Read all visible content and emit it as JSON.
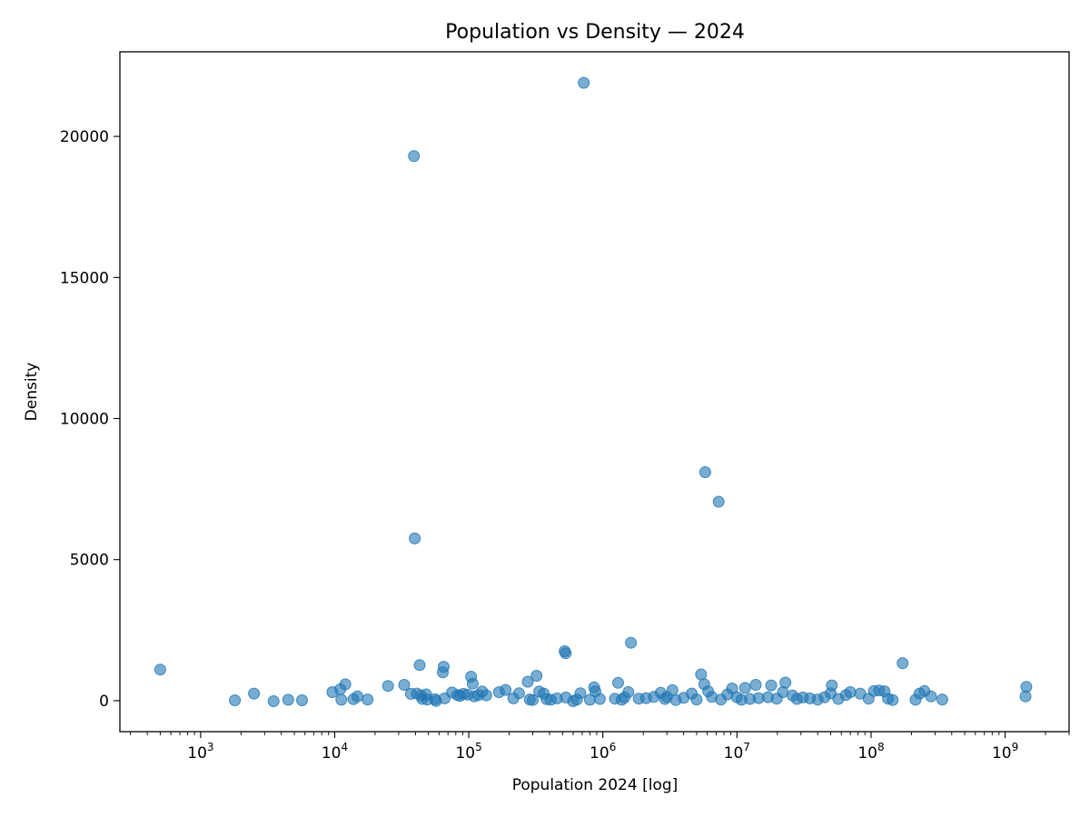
{
  "chart_data": {
    "type": "scatter",
    "title": "Population vs Density — 2024",
    "xlabel": "Population 2024 [log]",
    "ylabel": "Density",
    "xscale": "log",
    "xlim": [
      250,
      3000000000
    ],
    "ylim": [
      -1100,
      23000
    ],
    "grid": false,
    "legend": "none",
    "marker_color": "#1f77b4",
    "marker_alpha": 0.6,
    "x_ticks": [
      {
        "base": "10",
        "exp": "3",
        "value": 1000
      },
      {
        "base": "10",
        "exp": "4",
        "value": 10000
      },
      {
        "base": "10",
        "exp": "5",
        "value": 100000
      },
      {
        "base": "10",
        "exp": "6",
        "value": 1000000
      },
      {
        "base": "10",
        "exp": "7",
        "value": 10000000
      },
      {
        "base": "10",
        "exp": "8",
        "value": 100000000
      },
      {
        "base": "10",
        "exp": "9",
        "value": 1000000000
      }
    ],
    "y_ticks": [
      "0",
      "5000",
      "10000",
      "15000",
      "20000"
    ],
    "points": [
      {
        "x": 500,
        "y": 1100
      },
      {
        "x": 1800,
        "y": 10
      },
      {
        "x": 2500,
        "y": 250
      },
      {
        "x": 3500,
        "y": -20
      },
      {
        "x": 4500,
        "y": 30
      },
      {
        "x": 5700,
        "y": 10
      },
      {
        "x": 9600,
        "y": 300
      },
      {
        "x": 11000,
        "y": 400
      },
      {
        "x": 11200,
        "y": 30
      },
      {
        "x": 12000,
        "y": 580
      },
      {
        "x": 13800,
        "y": 50
      },
      {
        "x": 14800,
        "y": 150
      },
      {
        "x": 17600,
        "y": 40
      },
      {
        "x": 25000,
        "y": 520
      },
      {
        "x": 33000,
        "y": 560
      },
      {
        "x": 37000,
        "y": 240
      },
      {
        "x": 39000,
        "y": 19300
      },
      {
        "x": 39500,
        "y": 5750
      },
      {
        "x": 41000,
        "y": 250
      },
      {
        "x": 43000,
        "y": 1260
      },
      {
        "x": 44000,
        "y": 180
      },
      {
        "x": 45000,
        "y": 60
      },
      {
        "x": 48000,
        "y": 220
      },
      {
        "x": 49000,
        "y": 40
      },
      {
        "x": 56000,
        "y": 50
      },
      {
        "x": 57000,
        "y": -10
      },
      {
        "x": 64000,
        "y": 1000
      },
      {
        "x": 65000,
        "y": 1200
      },
      {
        "x": 66000,
        "y": 80
      },
      {
        "x": 75000,
        "y": 290
      },
      {
        "x": 82000,
        "y": 200
      },
      {
        "x": 86000,
        "y": 170
      },
      {
        "x": 91000,
        "y": 240
      },
      {
        "x": 98000,
        "y": 210
      },
      {
        "x": 104000,
        "y": 850
      },
      {
        "x": 107000,
        "y": 600
      },
      {
        "x": 110000,
        "y": 150
      },
      {
        "x": 118000,
        "y": 200
      },
      {
        "x": 126000,
        "y": 320
      },
      {
        "x": 135000,
        "y": 190
      },
      {
        "x": 168000,
        "y": 300
      },
      {
        "x": 188000,
        "y": 380
      },
      {
        "x": 215000,
        "y": 80
      },
      {
        "x": 237000,
        "y": 260
      },
      {
        "x": 275000,
        "y": 670
      },
      {
        "x": 285000,
        "y": 40
      },
      {
        "x": 300000,
        "y": 20
      },
      {
        "x": 320000,
        "y": 880
      },
      {
        "x": 335000,
        "y": 320
      },
      {
        "x": 362000,
        "y": 250
      },
      {
        "x": 380000,
        "y": 50
      },
      {
        "x": 408000,
        "y": 30
      },
      {
        "x": 455000,
        "y": 80
      },
      {
        "x": 518000,
        "y": 1750
      },
      {
        "x": 528000,
        "y": 1680
      },
      {
        "x": 530000,
        "y": 110
      },
      {
        "x": 600000,
        "y": -20
      },
      {
        "x": 640000,
        "y": 40
      },
      {
        "x": 680000,
        "y": 260
      },
      {
        "x": 720000,
        "y": 21900
      },
      {
        "x": 800000,
        "y": 30
      },
      {
        "x": 860000,
        "y": 470
      },
      {
        "x": 880000,
        "y": 330
      },
      {
        "x": 950000,
        "y": 60
      },
      {
        "x": 1230000,
        "y": 70
      },
      {
        "x": 1300000,
        "y": 630
      },
      {
        "x": 1380000,
        "y": 30
      },
      {
        "x": 1450000,
        "y": 110
      },
      {
        "x": 1550000,
        "y": 300
      },
      {
        "x": 1620000,
        "y": 2050
      },
      {
        "x": 1850000,
        "y": 70
      },
      {
        "x": 2100000,
        "y": 90
      },
      {
        "x": 2400000,
        "y": 130
      },
      {
        "x": 2700000,
        "y": 280
      },
      {
        "x": 2900000,
        "y": 60
      },
      {
        "x": 3000000,
        "y": 130
      },
      {
        "x": 3300000,
        "y": 370
      },
      {
        "x": 3500000,
        "y": 20
      },
      {
        "x": 4000000,
        "y": 100
      },
      {
        "x": 4600000,
        "y": 250
      },
      {
        "x": 5000000,
        "y": 40
      },
      {
        "x": 5400000,
        "y": 930
      },
      {
        "x": 5700000,
        "y": 580
      },
      {
        "x": 5800000,
        "y": 8100
      },
      {
        "x": 6100000,
        "y": 330
      },
      {
        "x": 6500000,
        "y": 130
      },
      {
        "x": 7300000,
        "y": 7050
      },
      {
        "x": 7600000,
        "y": 40
      },
      {
        "x": 8500000,
        "y": 220
      },
      {
        "x": 9200000,
        "y": 430
      },
      {
        "x": 10000000,
        "y": 120
      },
      {
        "x": 10800000,
        "y": 30
      },
      {
        "x": 11500000,
        "y": 450
      },
      {
        "x": 12500000,
        "y": 60
      },
      {
        "x": 13800000,
        "y": 560
      },
      {
        "x": 14500000,
        "y": 90
      },
      {
        "x": 17000000,
        "y": 120
      },
      {
        "x": 18000000,
        "y": 540
      },
      {
        "x": 19800000,
        "y": 70
      },
      {
        "x": 22000000,
        "y": 300
      },
      {
        "x": 23000000,
        "y": 640
      },
      {
        "x": 26000000,
        "y": 180
      },
      {
        "x": 28000000,
        "y": 60
      },
      {
        "x": 31000000,
        "y": 110
      },
      {
        "x": 35000000,
        "y": 80
      },
      {
        "x": 40000000,
        "y": 40
      },
      {
        "x": 45000000,
        "y": 120
      },
      {
        "x": 50000000,
        "y": 260
      },
      {
        "x": 51000000,
        "y": 540
      },
      {
        "x": 57000000,
        "y": 60
      },
      {
        "x": 65000000,
        "y": 200
      },
      {
        "x": 70000000,
        "y": 300
      },
      {
        "x": 83000000,
        "y": 250
      },
      {
        "x": 96000000,
        "y": 70
      },
      {
        "x": 105000000,
        "y": 340
      },
      {
        "x": 115000000,
        "y": 360
      },
      {
        "x": 126000000,
        "y": 330
      },
      {
        "x": 134000000,
        "y": 70
      },
      {
        "x": 145000000,
        "y": 20
      },
      {
        "x": 172000000,
        "y": 1330
      },
      {
        "x": 215000000,
        "y": 30
      },
      {
        "x": 230000000,
        "y": 250
      },
      {
        "x": 250000000,
        "y": 340
      },
      {
        "x": 280000000,
        "y": 150
      },
      {
        "x": 340000000,
        "y": 40
      },
      {
        "x": 1420000000,
        "y": 150
      },
      {
        "x": 1440000000,
        "y": 490
      }
    ]
  }
}
